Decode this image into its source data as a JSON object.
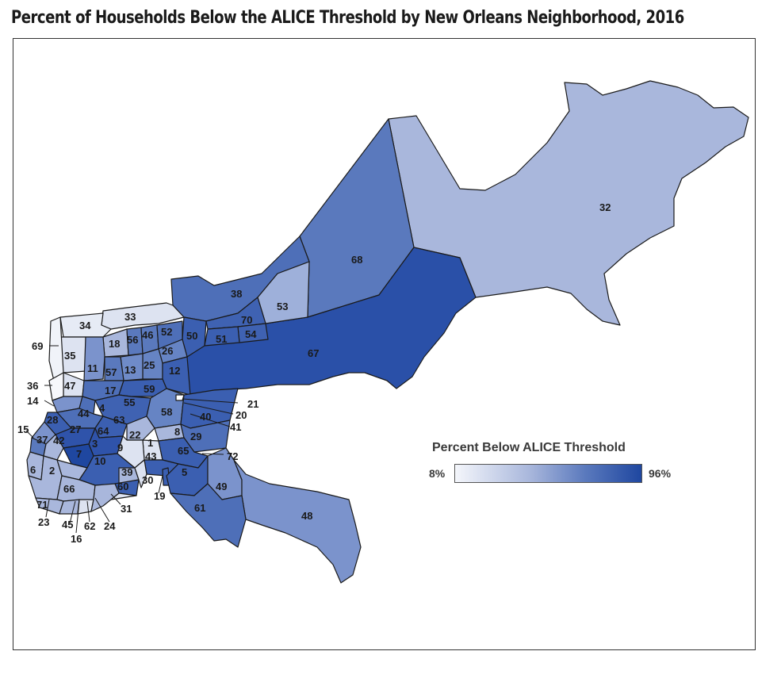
{
  "title": "Percent of Households Below the ALICE Threshold by New Orleans Neighborhood, 2016",
  "legend": {
    "title": "Percent Below ALICE Threshold",
    "min_label": "8%",
    "max_label": "96%",
    "min_value": 8,
    "max_value": 96,
    "color_low": "#f4f6fb",
    "color_high": "#1f47a0"
  },
  "colors": {
    "light": "#dde3f1",
    "medium_light": "#a9b7dc",
    "medium": "#7b93cc",
    "medium_dark": "#5a79bd",
    "dark": "#3b5fb1",
    "darkest": "#2a50a8",
    "border": "#1a1a1a"
  },
  "neighborhoods": {
    "n32": "32",
    "n68": "68",
    "n67": "67",
    "n38": "38",
    "n53": "53",
    "n70": "70",
    "n54": "54",
    "n51": "51",
    "n50": "50",
    "n52": "52",
    "n46": "46",
    "n56": "56",
    "n18": "18",
    "n33": "33",
    "n34": "34",
    "n69": "69",
    "n35": "35",
    "n11": "11",
    "n26": "26",
    "n25": "25",
    "n13": "13",
    "n57": "57",
    "n12": "12",
    "n36": "36",
    "n47": "47",
    "n17": "17",
    "n59": "59",
    "n14": "14",
    "n4": "4",
    "n55": "55",
    "n21": "21",
    "n20": "20",
    "n41": "41",
    "n40": "40",
    "n58": "58",
    "n44": "44",
    "n28": "28",
    "n63": "63",
    "n64": "64",
    "n27": "27",
    "n15": "15",
    "n37": "37",
    "n42": "42",
    "n3": "3",
    "n22": "22",
    "n8": "8",
    "n29": "29",
    "n1": "1",
    "n9": "9",
    "n7": "7",
    "n65": "65",
    "n72": "72",
    "n43": "43",
    "n6": "6",
    "n10": "10",
    "n2": "2",
    "n39": "39",
    "n30": "30",
    "n5": "5",
    "n60": "60",
    "n49": "49",
    "n66": "66",
    "n19": "19",
    "n31": "31",
    "n71": "71",
    "n61": "61",
    "n48": "48",
    "n23": "23",
    "n45": "45",
    "n62": "62",
    "n24": "24",
    "n16": "16"
  }
}
